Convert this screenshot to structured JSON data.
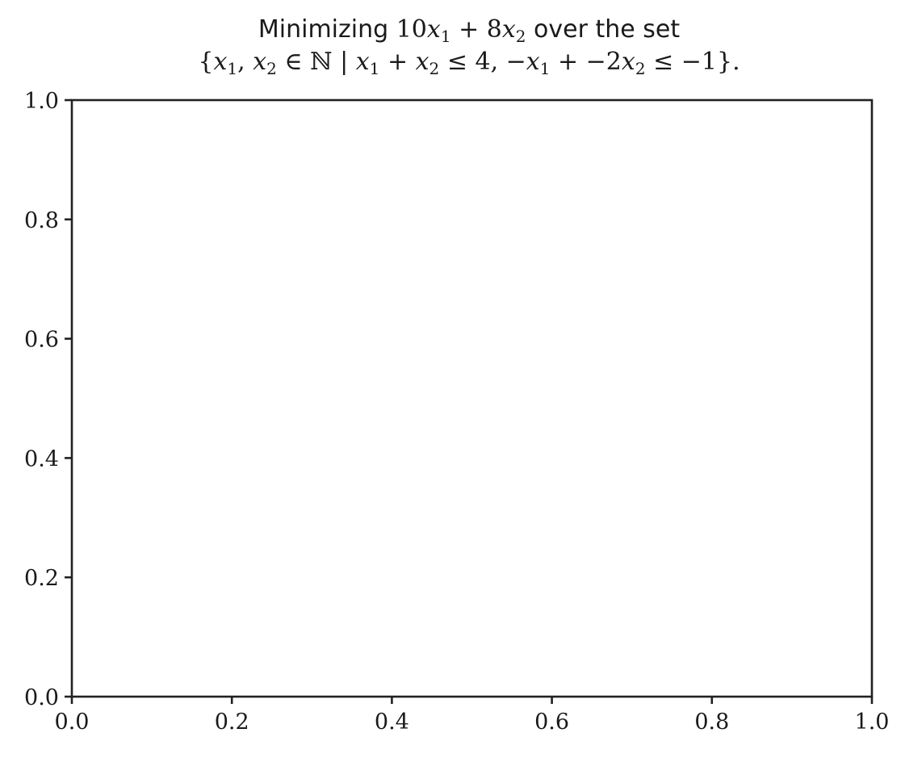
{
  "chart_data": {
    "type": "scatter",
    "title": {
      "line1": {
        "prefix": "Minimizing ",
        "c1": "10",
        "v1": "x",
        "s1": "1",
        "op1": " + ",
        "c2": "8",
        "v2": "x",
        "s2": "2",
        "suffix": " over the set"
      },
      "line2": {
        "open": "{",
        "a": "x",
        "a_sub": "1",
        "comma1": ", ",
        "b": "x",
        "b_sub": "2",
        "in": " ∈ ",
        "nat": "ℕ",
        "bar": " | ",
        "c": "x",
        "c_sub": "1",
        "plus1": " + ",
        "d": "x",
        "d_sub": "2",
        "le1": " ≤ 4, −",
        "e": "x",
        "e_sub": "1",
        "plus2": " + −2",
        "f": "x",
        "f_sub": "2",
        "le2": " ≤ −1",
        "close": "}."
      }
    },
    "xlabel": "",
    "ylabel": "",
    "xlim": [
      0.0,
      1.0
    ],
    "ylim": [
      0.0,
      1.0
    ],
    "xticks": [
      "0.0",
      "0.2",
      "0.4",
      "0.6",
      "0.8",
      "1.0"
    ],
    "yticks": [
      "0.0",
      "0.2",
      "0.4",
      "0.6",
      "0.8",
      "1.0"
    ],
    "series": [],
    "grid": false
  },
  "colors": {
    "axis": "#222222",
    "text": "#1a1a1a",
    "background": "#ffffff"
  }
}
